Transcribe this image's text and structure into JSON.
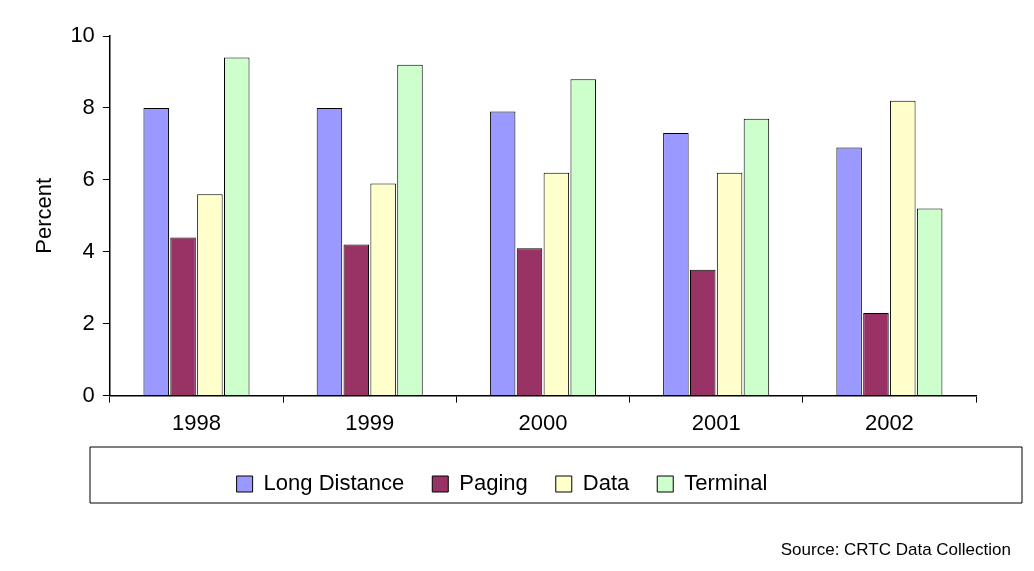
{
  "chart_data": {
    "type": "bar",
    "ylabel": "Percent",
    "categories": [
      "1998",
      "1999",
      "2000",
      "2001",
      "2002"
    ],
    "series": [
      {
        "name": "Long Distance",
        "color": "#9999ff",
        "values": [
          8.0,
          8.0,
          7.9,
          7.3,
          6.9
        ]
      },
      {
        "name": "Paging",
        "color": "#993366",
        "values": [
          4.4,
          4.2,
          4.1,
          3.5,
          2.3
        ]
      },
      {
        "name": "Data",
        "color": "#ffffcc",
        "values": [
          5.6,
          5.9,
          6.2,
          6.2,
          8.2
        ]
      },
      {
        "name": "Terminal",
        "color": "#ccffcc",
        "values": [
          9.4,
          9.2,
          8.8,
          7.7,
          5.2
        ]
      }
    ],
    "ylim": [
      0,
      10
    ],
    "yticks": [
      0,
      2,
      4,
      6,
      8,
      10
    ],
    "grid": false,
    "legend": "bottom",
    "annotations": [
      "Source: CRTC Data Collection"
    ]
  }
}
